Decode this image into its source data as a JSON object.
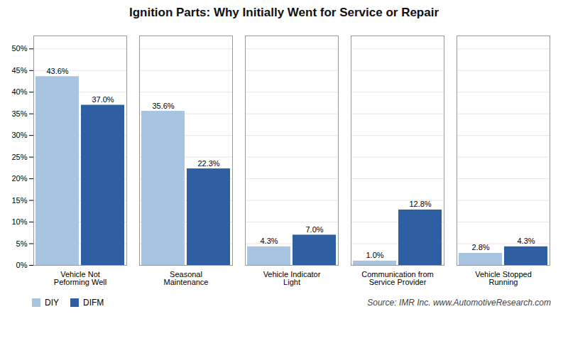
{
  "chart_data": {
    "type": "bar",
    "title": "Ignition Parts: Why Initially Went for Service or Repair",
    "categories": [
      "Vehicle Not\nPeforming Well",
      "Seasonal\nMaintenance",
      "Vehicle Indicator\nLight",
      "Communication from\nService Provider",
      "Vehicle Stopped\nRunning"
    ],
    "series": [
      {
        "name": "DIY",
        "color": "#a8c4e0",
        "values": [
          43.6,
          35.6,
          4.3,
          1.0,
          2.8
        ],
        "value_labels": [
          "43.6%",
          "35.6%",
          "4.3%",
          "1.0%",
          "2.8%"
        ]
      },
      {
        "name": "DIFM",
        "color": "#2e5fa3",
        "values": [
          37.0,
          22.3,
          7.0,
          12.8,
          4.3
        ],
        "value_labels": [
          "37.0%",
          "22.3%",
          "7.0%",
          "12.8%",
          "4.3%"
        ]
      }
    ],
    "ylim": [
      0,
      53
    ],
    "yticks": [
      {
        "value": 0,
        "label": "0%"
      },
      {
        "value": 5,
        "label": "5%"
      },
      {
        "value": 10,
        "label": "10%"
      },
      {
        "value": 15,
        "label": "15%"
      },
      {
        "value": 20,
        "label": "20%"
      },
      {
        "value": 25,
        "label": "25%"
      },
      {
        "value": 30,
        "label": "30%"
      },
      {
        "value": 35,
        "label": "35%"
      },
      {
        "value": 40,
        "label": "40%"
      },
      {
        "value": 45,
        "label": "45%"
      },
      {
        "value": 50,
        "label": "50%"
      }
    ],
    "grid": true,
    "legend": "lower left",
    "data_labels": true,
    "annotations": [
      "Source: IMR Inc. www.AutomotiveResearch.com"
    ]
  }
}
